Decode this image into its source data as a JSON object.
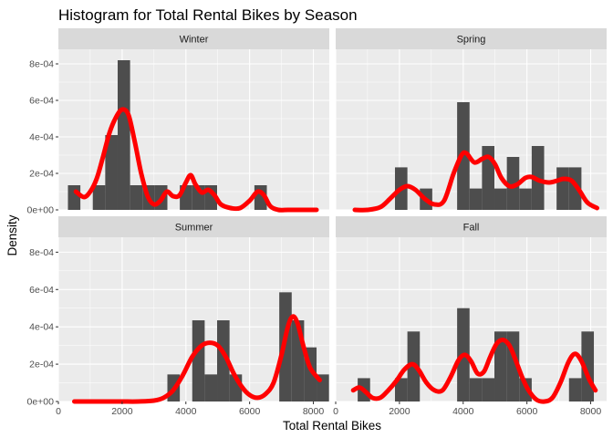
{
  "chart_data": {
    "type": "bar",
    "title": "Histogram for Total Rental Bikes by Season",
    "xlabel": "Total Rental Bikes",
    "ylabel": "Density",
    "xlim": [
      0,
      8500
    ],
    "ylim": [
      0,
      0.00088
    ],
    "x_ticks": [
      0,
      2000,
      4000,
      6000,
      8000
    ],
    "x_tick_labels": [
      "0",
      "2000",
      "4000",
      "6000",
      "8000"
    ],
    "y_ticks": [
      0,
      0.0002,
      0.0004,
      0.0006,
      0.0008
    ],
    "y_tick_labels": [
      "0e+00",
      "2e-04",
      "4e-04",
      "6e-04",
      "8e-04"
    ],
    "bin_width": 390,
    "colors": {
      "bars": "#4d4d4d",
      "density": "#ff0000",
      "panel": "#ebebeb",
      "strip": "#d9d9d9",
      "grid": "#ffffff"
    },
    "facets": [
      {
        "name": "Winter",
        "bins": [
          {
            "x0": 300,
            "x1": 690,
            "density": 0.000135
          },
          {
            "x0": 1080,
            "x1": 1470,
            "density": 0.000135
          },
          {
            "x0": 1470,
            "x1": 1860,
            "density": 0.00041
          },
          {
            "x0": 1860,
            "x1": 2250,
            "density": 0.00082
          },
          {
            "x0": 2250,
            "x1": 2640,
            "density": 0.000135
          },
          {
            "x0": 2640,
            "x1": 3030,
            "density": 0.000135
          },
          {
            "x0": 3030,
            "x1": 3420,
            "density": 0.000135
          },
          {
            "x0": 3810,
            "x1": 4200,
            "density": 0.000135
          },
          {
            "x0": 4200,
            "x1": 4590,
            "density": 0.000135
          },
          {
            "x0": 4590,
            "x1": 4980,
            "density": 0.000135
          },
          {
            "x0": 6150,
            "x1": 6540,
            "density": 0.000135
          }
        ],
        "density": [
          [
            550,
            0.0001
          ],
          [
            800,
            7e-05
          ],
          [
            1000,
            0.0001
          ],
          [
            1200,
            0.00017
          ],
          [
            1400,
            0.00029
          ],
          [
            1600,
            0.00042
          ],
          [
            1800,
            0.000505
          ],
          [
            2000,
            0.00055
          ],
          [
            2200,
            0.00052
          ],
          [
            2400,
            0.00037
          ],
          [
            2600,
            0.0002
          ],
          [
            2800,
            7.5e-05
          ],
          [
            3000,
            3e-05
          ],
          [
            3200,
            5e-05
          ],
          [
            3400,
            0.0001
          ],
          [
            3600,
            7.5e-05
          ],
          [
            3800,
            8e-05
          ],
          [
            4000,
            0.00015
          ],
          [
            4150,
            0.00019
          ],
          [
            4300,
            0.00014
          ],
          [
            4500,
            9.5e-05
          ],
          [
            4700,
            0.00011
          ],
          [
            4900,
            8e-05
          ],
          [
            5100,
            3e-05
          ],
          [
            5400,
            1e-05
          ],
          [
            5700,
            1e-05
          ],
          [
            6000,
            5e-05
          ],
          [
            6250,
            0.0001
          ],
          [
            6450,
            8e-05
          ],
          [
            6650,
            2e-05
          ],
          [
            6900,
            0.0
          ],
          [
            7200,
            0.0
          ],
          [
            7600,
            0.0
          ],
          [
            8100,
            0.0
          ]
        ]
      },
      {
        "name": "Spring",
        "bins": [
          {
            "x0": 1860,
            "x1": 2250,
            "density": 0.000233
          },
          {
            "x0": 2640,
            "x1": 3030,
            "density": 0.000117
          },
          {
            "x0": 3810,
            "x1": 4200,
            "density": 0.00059
          },
          {
            "x0": 4200,
            "x1": 4590,
            "density": 0.000117
          },
          {
            "x0": 4590,
            "x1": 4980,
            "density": 0.00035
          },
          {
            "x0": 4980,
            "x1": 5370,
            "density": 0.000117
          },
          {
            "x0": 5370,
            "x1": 5760,
            "density": 0.00029
          },
          {
            "x0": 5760,
            "x1": 6150,
            "density": 0.000117
          },
          {
            "x0": 6150,
            "x1": 6540,
            "density": 0.00035
          },
          {
            "x0": 6930,
            "x1": 7320,
            "density": 0.000233
          },
          {
            "x0": 7320,
            "x1": 7710,
            "density": 0.000233
          }
        ],
        "density": [
          [
            600,
            0.0
          ],
          [
            1000,
            0.0
          ],
          [
            1400,
            1.5e-05
          ],
          [
            1700,
            6e-05
          ],
          [
            2000,
            0.00011
          ],
          [
            2250,
            0.00013
          ],
          [
            2500,
            0.00011
          ],
          [
            2800,
            6e-05
          ],
          [
            3100,
            3e-05
          ],
          [
            3400,
            5e-05
          ],
          [
            3700,
            0.0002
          ],
          [
            3950,
            0.0003
          ],
          [
            4100,
            0.00031
          ],
          [
            4350,
            0.00026
          ],
          [
            4600,
            0.00028
          ],
          [
            4800,
            0.00029
          ],
          [
            5000,
            0.00025
          ],
          [
            5200,
            0.000175
          ],
          [
            5450,
            0.00013
          ],
          [
            5700,
            0.00014
          ],
          [
            5950,
            0.000175
          ],
          [
            6150,
            0.00018
          ],
          [
            6400,
            0.00016
          ],
          [
            6700,
            0.00015
          ],
          [
            6950,
            0.00016
          ],
          [
            7150,
            0.00017
          ],
          [
            7400,
            0.00016
          ],
          [
            7650,
            0.000105
          ],
          [
            7900,
            4e-05
          ],
          [
            8200,
            1e-05
          ]
        ]
      },
      {
        "name": "Summer",
        "bins": [
          {
            "x0": 3420,
            "x1": 3810,
            "density": 0.000145
          },
          {
            "x0": 4200,
            "x1": 4590,
            "density": 0.000435
          },
          {
            "x0": 4590,
            "x1": 4980,
            "density": 0.000145
          },
          {
            "x0": 4980,
            "x1": 5370,
            "density": 0.000435
          },
          {
            "x0": 5370,
            "x1": 5760,
            "density": 0.000145
          },
          {
            "x0": 6930,
            "x1": 7320,
            "density": 0.000585
          },
          {
            "x0": 7320,
            "x1": 7710,
            "density": 0.000435
          },
          {
            "x0": 7710,
            "x1": 8100,
            "density": 0.00029
          },
          {
            "x0": 8100,
            "x1": 8490,
            "density": 0.000145
          }
        ],
        "density": [
          [
            500,
            0.0
          ],
          [
            1000,
            0.0
          ],
          [
            1500,
            0.0
          ],
          [
            2000,
            0.0
          ],
          [
            2500,
            0.0
          ],
          [
            3000,
            5e-06
          ],
          [
            3300,
            2e-05
          ],
          [
            3600,
            6e-05
          ],
          [
            3900,
            0.00014
          ],
          [
            4200,
            0.00024
          ],
          [
            4500,
            0.0003
          ],
          [
            4750,
            0.000315
          ],
          [
            5000,
            0.0003
          ],
          [
            5250,
            0.00024
          ],
          [
            5500,
            0.00015
          ],
          [
            5750,
            8e-05
          ],
          [
            6000,
            3.5e-05
          ],
          [
            6250,
            2e-05
          ],
          [
            6500,
            4e-05
          ],
          [
            6750,
            0.0001
          ],
          [
            7000,
            0.00025
          ],
          [
            7200,
            0.0004
          ],
          [
            7350,
            0.000455
          ],
          [
            7500,
            0.00042
          ],
          [
            7700,
            0.00029
          ],
          [
            7900,
            0.00018
          ],
          [
            8200,
            0.000115
          ]
        ]
      },
      {
        "name": "Fall",
        "bins": [
          {
            "x0": 690,
            "x1": 1080,
            "density": 0.000125
          },
          {
            "x0": 1860,
            "x1": 2250,
            "density": 0.000125
          },
          {
            "x0": 2250,
            "x1": 2640,
            "density": 0.000375
          },
          {
            "x0": 3810,
            "x1": 4200,
            "density": 0.0005
          },
          {
            "x0": 4200,
            "x1": 4590,
            "density": 0.000125
          },
          {
            "x0": 4590,
            "x1": 4980,
            "density": 0.000125
          },
          {
            "x0": 4980,
            "x1": 5370,
            "density": 0.000375
          },
          {
            "x0": 5370,
            "x1": 5760,
            "density": 0.000375
          },
          {
            "x0": 5760,
            "x1": 6150,
            "density": 0.000125
          },
          {
            "x0": 7320,
            "x1": 7710,
            "density": 0.000125
          },
          {
            "x0": 7710,
            "x1": 8100,
            "density": 0.000375
          }
        ],
        "density": [
          [
            550,
            6e-05
          ],
          [
            750,
            7.5e-05
          ],
          [
            950,
            5e-05
          ],
          [
            1150,
            2e-05
          ],
          [
            1400,
            2e-05
          ],
          [
            1650,
            6e-05
          ],
          [
            1900,
            0.00011
          ],
          [
            2150,
            0.00017
          ],
          [
            2400,
            0.0002
          ],
          [
            2600,
            0.00017
          ],
          [
            2850,
            0.0001
          ],
          [
            3100,
            6e-05
          ],
          [
            3350,
            6e-05
          ],
          [
            3600,
            0.00013
          ],
          [
            3850,
            0.00022
          ],
          [
            4050,
            0.00025
          ],
          [
            4250,
            0.000215
          ],
          [
            4450,
            0.00015
          ],
          [
            4650,
            0.00016
          ],
          [
            4850,
            0.00024
          ],
          [
            5050,
            0.00031
          ],
          [
            5250,
            0.00033
          ],
          [
            5450,
            0.0003
          ],
          [
            5650,
            0.00022
          ],
          [
            5850,
            0.00013
          ],
          [
            6050,
            6e-05
          ],
          [
            6300,
            1e-05
          ],
          [
            6550,
            0.0
          ],
          [
            6800,
            2e-05
          ],
          [
            7050,
            0.0001
          ],
          [
            7300,
            0.00021
          ],
          [
            7500,
            0.000255
          ],
          [
            7700,
            0.00022
          ],
          [
            7950,
            0.00012
          ],
          [
            8150,
            6e-05
          ]
        ]
      }
    ]
  }
}
